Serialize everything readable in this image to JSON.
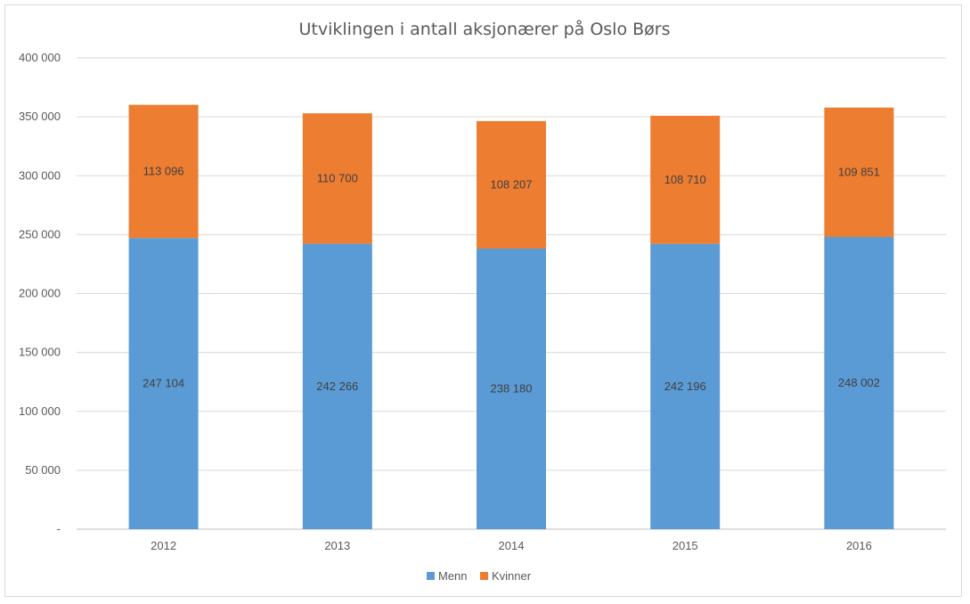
{
  "chart_data": {
    "type": "bar",
    "stacked": true,
    "title": "Utviklingen i antall aksjonærer på Oslo Børs",
    "xlabel": "",
    "ylabel": "",
    "categories": [
      "2012",
      "2013",
      "2014",
      "2015",
      "2016"
    ],
    "series": [
      {
        "name": "Menn",
        "color": "#5b9bd5",
        "values": [
          247104,
          242266,
          238180,
          242196,
          248002
        ],
        "labels": [
          "247 104",
          "242 266",
          "238 180",
          "242 196",
          "248 002"
        ]
      },
      {
        "name": "Kvinner",
        "color": "#ed7d31",
        "values": [
          113096,
          110700,
          108207,
          108710,
          109851
        ],
        "labels": [
          "113 096",
          "110 700",
          "108 207",
          "108 710",
          "109 851"
        ]
      }
    ],
    "ylim": [
      0,
      400000
    ],
    "yticks": [
      0,
      50000,
      100000,
      150000,
      200000,
      250000,
      300000,
      350000,
      400000
    ],
    "ytick_labels": [
      "-",
      "50 000",
      "100 000",
      "150 000",
      "200 000",
      "250 000",
      "300 000",
      "350 000",
      "400 000"
    ],
    "grid": true,
    "legend_position": "bottom"
  }
}
